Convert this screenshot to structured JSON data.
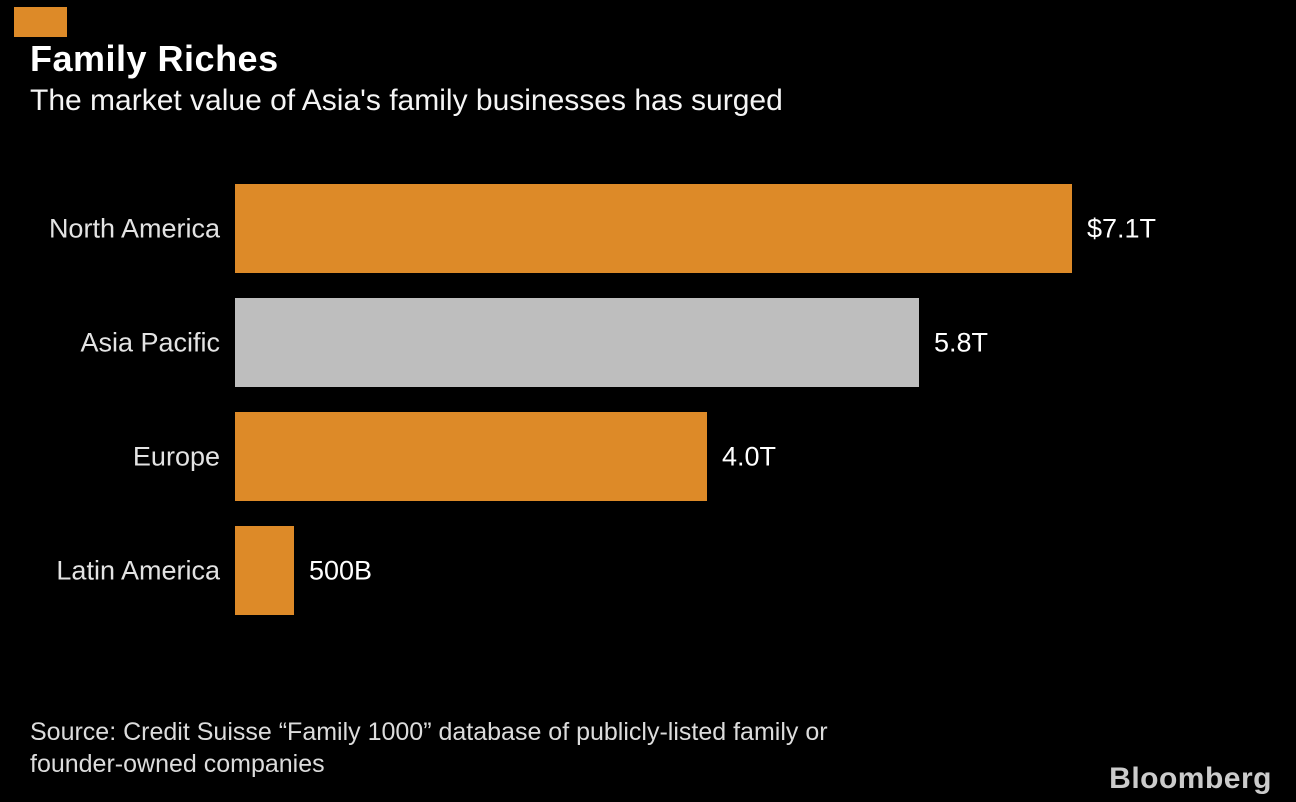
{
  "header": {
    "title": "Family Riches",
    "subtitle": "The market value of Asia's family businesses has surged"
  },
  "chart_data": {
    "type": "bar",
    "orientation": "horizontal",
    "title": "Family Riches",
    "subtitle": "The market value of Asia's family businesses has surged",
    "unit": "trillions of USD",
    "categories": [
      "North America",
      "Asia Pacific",
      "Europe",
      "Latin America"
    ],
    "values": [
      7.1,
      5.8,
      4.0,
      0.5
    ],
    "value_labels": [
      "$7.1T",
      "5.8T",
      "4.0T",
      "500B"
    ],
    "bar_colors": [
      "#DD8A28",
      "#BEBEBE",
      "#DD8A28",
      "#DD8A28"
    ],
    "xlim": [
      0,
      7.1
    ],
    "grid": false,
    "legend": "none"
  },
  "footer": {
    "source_line1": "Source: Credit Suisse “Family 1000” database of publicly-listed family or",
    "source_line2": "founder-owned companies",
    "brand": "Bloomberg"
  },
  "colors": {
    "background": "#000000",
    "accent_orange": "#DD8A28",
    "bar_gray": "#BEBEBE",
    "text_primary": "#FFFFFF",
    "text_labels": "#E3E3E3",
    "text_source": "#DCDCDC",
    "brand_gray": "#CBCBCB"
  }
}
